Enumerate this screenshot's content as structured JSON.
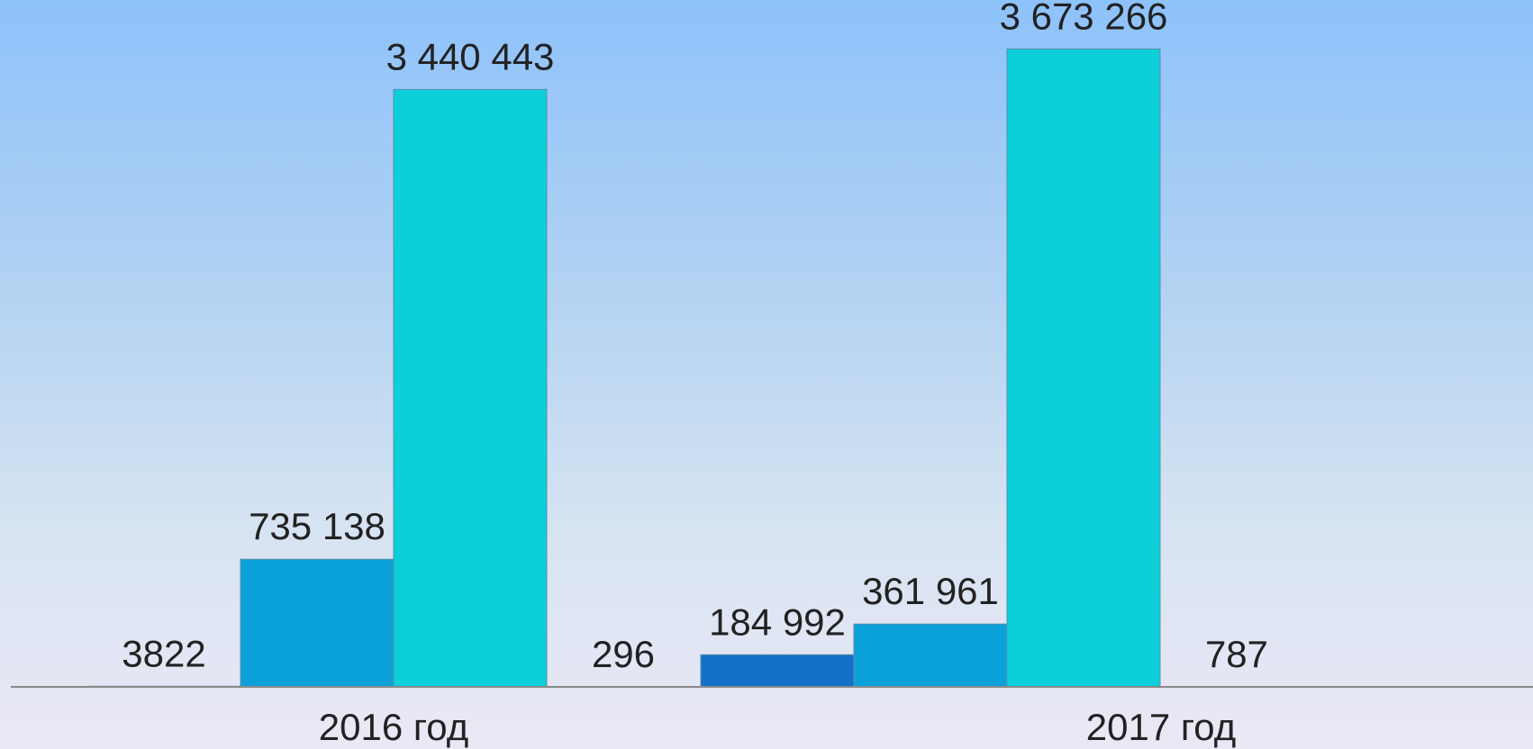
{
  "chart_data": {
    "type": "bar",
    "categories": [
      "2016 год",
      "2017 год"
    ],
    "series": [
      {
        "values": [
          3822,
          184992
        ],
        "labels": [
          "3822",
          "184 992"
        ],
        "color": "#1270c7"
      },
      {
        "values": [
          735138,
          361961
        ],
        "labels": [
          "735 138",
          "361 961"
        ],
        "color": "#0aa0d8"
      },
      {
        "values": [
          3440443,
          3673266
        ],
        "labels": [
          "3 440 443",
          "3 673 266"
        ],
        "color": "#0ccfd9"
      },
      {
        "values": [
          296,
          787
        ],
        "labels": [
          "296",
          "787"
        ],
        "color": "#22e0e6"
      }
    ],
    "ylim": [
      0,
      3800000
    ],
    "grid": false,
    "legend": "none"
  }
}
